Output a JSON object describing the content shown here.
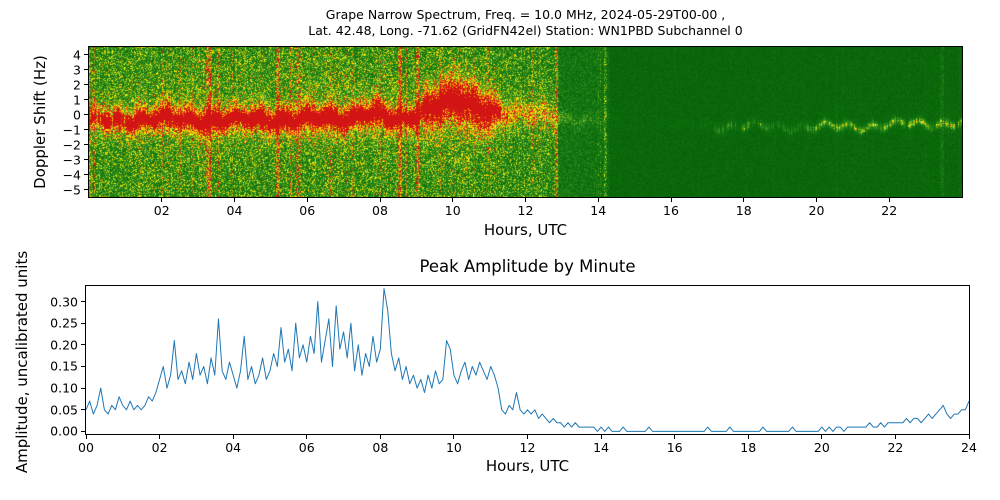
{
  "colors": {
    "background": "#ffffff",
    "frame": "#000000",
    "text": "#000000"
  },
  "chart_data": [
    {
      "type": "heatmap",
      "name": "doppler-spectrogram",
      "title_lines": [
        "Grape Narrow Spectrum, Freq. = 10.0 MHz, 2024-05-29T00-00 ,",
        "Lat. 42.48, Long. -71.62 (GridFN42el) Station: WN1PBD Subchannel 0"
      ],
      "xlabel": "Hours, UTC",
      "ylabel": "Doppler Shift (Hz)",
      "xlim": [
        0,
        24
      ],
      "ylim": [
        -5.5,
        4.5
      ],
      "xticks": {
        "values": [
          2,
          4,
          6,
          8,
          10,
          12,
          14,
          16,
          18,
          20,
          22
        ],
        "labels": [
          "02",
          "04",
          "06",
          "08",
          "10",
          "12",
          "14",
          "16",
          "18",
          "20",
          "22"
        ]
      },
      "yticks": {
        "values": [
          4,
          3,
          2,
          1,
          0,
          -1,
          -2,
          -3,
          -4,
          -5
        ],
        "labels": [
          "4",
          "3",
          "2",
          "1",
          "0",
          "−1",
          "−2",
          "−3",
          "−4",
          "−5"
        ]
      },
      "colormap_stops": [
        [
          0,
          "#045c04"
        ],
        [
          0.3,
          "#147814"
        ],
        [
          0.5,
          "#3c9620"
        ],
        [
          0.65,
          "#a0c820"
        ],
        [
          0.75,
          "#ffff00"
        ],
        [
          0.87,
          "#ff9600"
        ],
        [
          1,
          "#d21414"
        ]
      ],
      "band_center_hz": [
        [
          0,
          -0.4
        ],
        [
          1,
          -0.35
        ],
        [
          2,
          -0.3
        ],
        [
          3,
          -0.35
        ],
        [
          4,
          -0.4
        ],
        [
          5,
          -0.3
        ],
        [
          6,
          -0.35
        ],
        [
          7,
          -0.25
        ],
        [
          7.6,
          0.1
        ],
        [
          8,
          -0.1
        ],
        [
          8.4,
          -0.5
        ],
        [
          8.8,
          -0.2
        ],
        [
          9.2,
          0.3
        ],
        [
          9.7,
          0.8
        ],
        [
          10.1,
          0.9
        ],
        [
          10.5,
          0.5
        ],
        [
          11,
          0.3
        ],
        [
          11.5,
          0.1
        ],
        [
          12,
          0
        ],
        [
          13,
          -0.2
        ],
        [
          14,
          -0.4
        ],
        [
          15,
          -0.6
        ],
        [
          16,
          -0.7
        ],
        [
          17,
          -0.75
        ],
        [
          18,
          -0.8
        ],
        [
          19,
          -0.8
        ],
        [
          20,
          -0.85
        ],
        [
          21,
          -0.8
        ],
        [
          22,
          -0.7
        ],
        [
          23,
          -0.6
        ],
        [
          24,
          -0.55
        ]
      ],
      "band_strength": [
        [
          0,
          0.6
        ],
        [
          0.5,
          0.65
        ],
        [
          1,
          0.7
        ],
        [
          2,
          0.8
        ],
        [
          3,
          0.85
        ],
        [
          4,
          0.8
        ],
        [
          5,
          0.85
        ],
        [
          6,
          0.9
        ],
        [
          7,
          0.85
        ],
        [
          8,
          0.9
        ],
        [
          8.6,
          0.75
        ],
        [
          9,
          0.8
        ],
        [
          9.6,
          1
        ],
        [
          10,
          1.05
        ],
        [
          10.6,
          0.95
        ],
        [
          11,
          0.85
        ],
        [
          11.3,
          0.6
        ],
        [
          11.6,
          0.45
        ],
        [
          12,
          0.4
        ],
        [
          12.5,
          0.38
        ],
        [
          12.9,
          0.3
        ],
        [
          13.2,
          0.18
        ],
        [
          13.8,
          0.12
        ],
        [
          14.3,
          0.05
        ],
        [
          15,
          0.03
        ],
        [
          16,
          0.03
        ],
        [
          16.8,
          0.1
        ],
        [
          17.2,
          0.3
        ],
        [
          18,
          0.42
        ],
        [
          18.8,
          0.3
        ],
        [
          19.4,
          0.25
        ],
        [
          20,
          0.45
        ],
        [
          21,
          0.5
        ],
        [
          22,
          0.5
        ],
        [
          23,
          0.55
        ],
        [
          24,
          0.55
        ]
      ],
      "background_level": [
        [
          0,
          0.5
        ],
        [
          6,
          0.52
        ],
        [
          11,
          0.5
        ],
        [
          12.7,
          0.48
        ],
        [
          13,
          0.32
        ],
        [
          14.15,
          0.3
        ],
        [
          14.35,
          0.15
        ],
        [
          18,
          0.14
        ],
        [
          24,
          0.15
        ]
      ],
      "bright_columns_utc": [
        3.3,
        5.2,
        8.55,
        9.05,
        12.85,
        14.2,
        23.45
      ],
      "description": "Strong yellow/red Doppler trace near 0 Hz from 00-12 UTC with dense speckled noise; brightest yellow blob 9.5-11 UTC shifted to +0.5/+1 Hz; band fades 12-14 UTC; quiet dark-green background 14-17 UTC; faint thin trace near -0.7 Hz from 17-24 UTC."
    },
    {
      "type": "line",
      "name": "peak-amplitude-by-minute",
      "title": "Peak Amplitude by Minute",
      "xlabel": "Hours, UTC",
      "ylabel": "Amplitude, uncalibrated units",
      "xlim": [
        0,
        24
      ],
      "ylim": [
        -0.006,
        0.336
      ],
      "xticks": {
        "values": [
          0,
          2,
          4,
          6,
          8,
          10,
          12,
          14,
          16,
          18,
          20,
          22,
          24
        ],
        "labels": [
          "00",
          "02",
          "04",
          "06",
          "08",
          "10",
          "12",
          "14",
          "16",
          "18",
          "20",
          "22",
          "24"
        ]
      },
      "yticks": {
        "values": [
          0,
          0.05,
          0.1,
          0.15,
          0.2,
          0.25,
          0.3
        ],
        "labels": [
          "0.00",
          "0.05",
          "0.10",
          "0.15",
          "0.20",
          "0.25",
          "0.30"
        ]
      },
      "line_color": "#1f77b4",
      "x_start": 0,
      "x_step_hours": 0.1,
      "values": [
        0.05,
        0.07,
        0.04,
        0.06,
        0.1,
        0.05,
        0.04,
        0.06,
        0.05,
        0.08,
        0.06,
        0.05,
        0.07,
        0.05,
        0.06,
        0.05,
        0.06,
        0.08,
        0.07,
        0.09,
        0.12,
        0.15,
        0.1,
        0.13,
        0.21,
        0.12,
        0.14,
        0.11,
        0.16,
        0.12,
        0.18,
        0.13,
        0.15,
        0.11,
        0.17,
        0.13,
        0.26,
        0.14,
        0.12,
        0.16,
        0.13,
        0.1,
        0.14,
        0.22,
        0.12,
        0.15,
        0.11,
        0.13,
        0.17,
        0.12,
        0.14,
        0.18,
        0.15,
        0.24,
        0.16,
        0.19,
        0.14,
        0.25,
        0.17,
        0.2,
        0.16,
        0.22,
        0.18,
        0.3,
        0.16,
        0.21,
        0.26,
        0.15,
        0.29,
        0.19,
        0.23,
        0.17,
        0.25,
        0.14,
        0.2,
        0.13,
        0.18,
        0.15,
        0.22,
        0.16,
        0.19,
        0.33,
        0.28,
        0.18,
        0.14,
        0.17,
        0.12,
        0.15,
        0.11,
        0.13,
        0.1,
        0.12,
        0.09,
        0.13,
        0.1,
        0.14,
        0.11,
        0.12,
        0.21,
        0.19,
        0.13,
        0.11,
        0.14,
        0.16,
        0.12,
        0.15,
        0.13,
        0.16,
        0.14,
        0.12,
        0.15,
        0.13,
        0.1,
        0.05,
        0.04,
        0.06,
        0.05,
        0.09,
        0.05,
        0.04,
        0.05,
        0.04,
        0.05,
        0.03,
        0.04,
        0.03,
        0.02,
        0.03,
        0.02,
        0.02,
        0.01,
        0.02,
        0.01,
        0.02,
        0.01,
        0.01,
        0.01,
        0.01,
        0.01,
        0.0,
        0.01,
        0.0,
        0.01,
        0.0,
        0.0,
        0.0,
        0.01,
        0.0,
        0.0,
        0.0,
        0.0,
        0.0,
        0.0,
        0.01,
        0.0,
        0.0,
        0.0,
        0.0,
        0.0,
        0.0,
        0.0,
        0.0,
        0.0,
        0.0,
        0.0,
        0.0,
        0.0,
        0.0,
        0.0,
        0.01,
        0.0,
        0.0,
        0.0,
        0.0,
        0.0,
        0.01,
        0.0,
        0.0,
        0.0,
        0.0,
        0.0,
        0.0,
        0.0,
        0.0,
        0.01,
        0.0,
        0.0,
        0.0,
        0.0,
        0.0,
        0.0,
        0.0,
        0.01,
        0.0,
        0.0,
        0.0,
        0.0,
        0.0,
        0.0,
        0.0,
        0.01,
        0.0,
        0.01,
        0.0,
        0.01,
        0.01,
        0.0,
        0.01,
        0.01,
        0.01,
        0.01,
        0.01,
        0.01,
        0.02,
        0.01,
        0.01,
        0.02,
        0.01,
        0.02,
        0.02,
        0.02,
        0.02,
        0.02,
        0.03,
        0.02,
        0.03,
        0.03,
        0.02,
        0.03,
        0.04,
        0.03,
        0.04,
        0.05,
        0.06,
        0.04,
        0.03,
        0.04,
        0.04,
        0.05,
        0.05,
        0.07
      ]
    }
  ]
}
